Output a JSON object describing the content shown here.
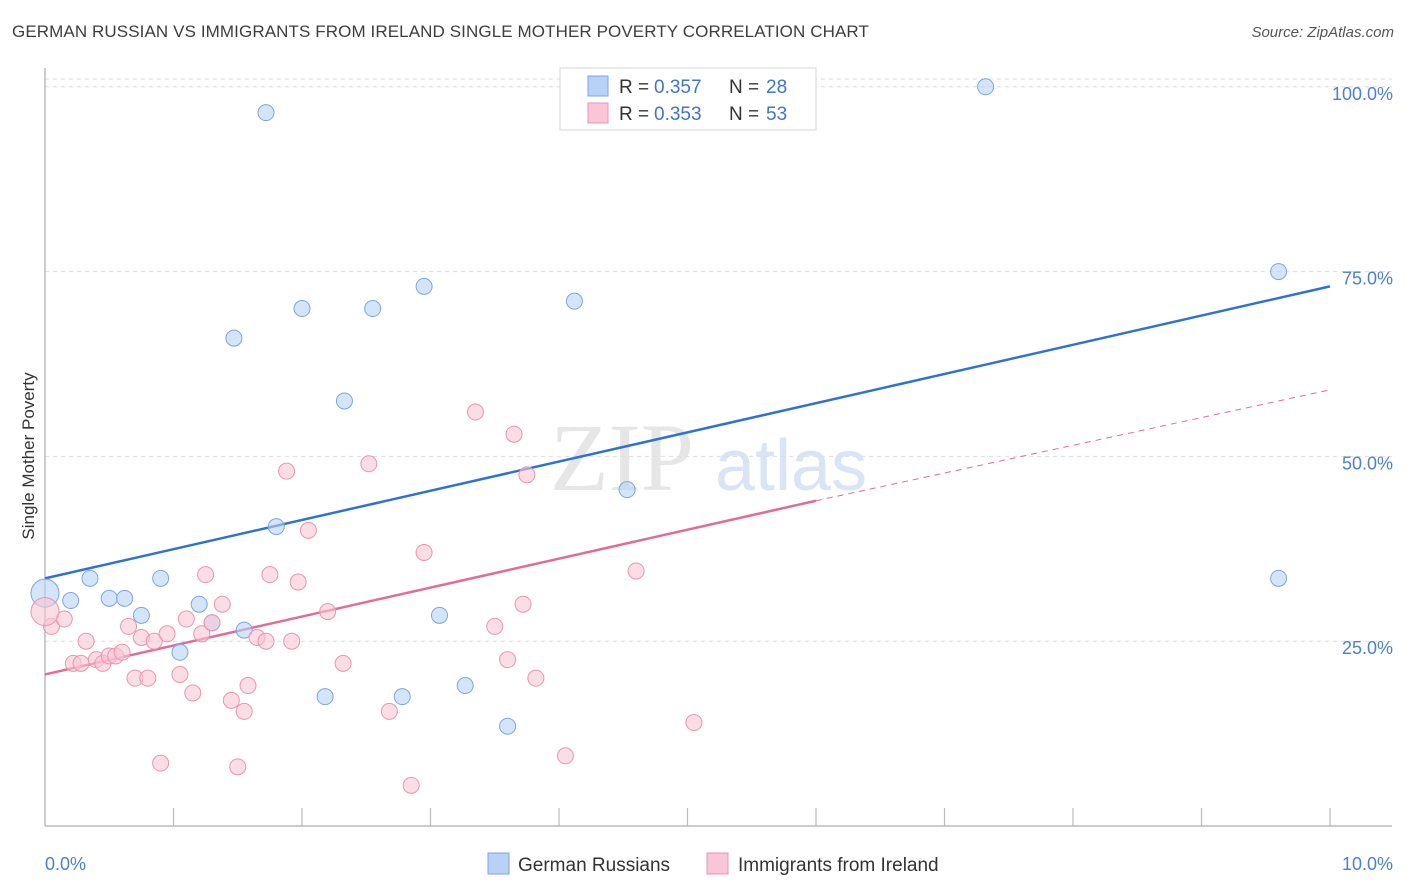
{
  "title": "GERMAN RUSSIAN VS IMMIGRANTS FROM IRELAND SINGLE MOTHER POVERTY CORRELATION CHART",
  "source": "Source: ZipAtlas.com",
  "watermark": {
    "zip": "ZIP",
    "atlas": "atlas"
  },
  "colors": {
    "blue_fill": "#b8d2f5",
    "blue_stroke": "#7aa6e4",
    "blue_line": "#2f72d4",
    "pink_fill": "#f8c6d6",
    "pink_stroke": "#ec94b0",
    "pink_line": "#e36b97",
    "tick_text": "#4a7fd6",
    "grid": "#dddddd"
  },
  "legend": {
    "rows": [
      {
        "r_label": "R = ",
        "r_value": "0.357",
        "n_label": "N = ",
        "n_value": "28"
      },
      {
        "r_label": "R = ",
        "r_value": "0.353",
        "n_label": "N = ",
        "n_value": "53"
      }
    ]
  },
  "chart_data": {
    "type": "scatter",
    "title": "GERMAN RUSSIAN VS IMMIGRANTS FROM IRELAND SINGLE MOTHER POVERTY CORRELATION CHART",
    "xlabel": "",
    "ylabel": "Single Mother Poverty",
    "xlim": [
      0,
      10
    ],
    "ylim": [
      0,
      102
    ],
    "x_tick_labels": [
      "0.0%",
      "10.0%"
    ],
    "y_tick_labels": [
      "25.0%",
      "50.0%",
      "75.0%",
      "100.0%"
    ],
    "y_ticks": [
      25,
      50,
      75,
      100
    ],
    "grid": true,
    "legend_position": "bottom-center",
    "series": [
      {
        "name": "German Russians",
        "color": "#b8d2f5",
        "points": [
          [
            0.0,
            31.5
          ],
          [
            0.2,
            30.5
          ],
          [
            0.35,
            33.5
          ],
          [
            0.5,
            30.8
          ],
          [
            0.62,
            30.8
          ],
          [
            0.75,
            28.5
          ],
          [
            0.9,
            33.5
          ],
          [
            1.05,
            23.5
          ],
          [
            1.2,
            30.0
          ],
          [
            1.3,
            27.5
          ],
          [
            1.47,
            66.0
          ],
          [
            1.55,
            26.5
          ],
          [
            1.72,
            96.5
          ],
          [
            1.8,
            40.5
          ],
          [
            2.0,
            70.0
          ],
          [
            2.18,
            17.5
          ],
          [
            2.33,
            57.5
          ],
          [
            2.55,
            70.0
          ],
          [
            2.78,
            17.5
          ],
          [
            2.95,
            73.0
          ],
          [
            3.07,
            28.5
          ],
          [
            3.27,
            19.0
          ],
          [
            3.6,
            13.5
          ],
          [
            4.12,
            71.0
          ],
          [
            4.53,
            45.5
          ],
          [
            7.32,
            100.0
          ],
          [
            9.6,
            33.5
          ],
          [
            9.6,
            75.0
          ]
        ]
      },
      {
        "name": "Immigrants from Ireland",
        "color": "#f8c6d6",
        "points": [
          [
            0.05,
            27.0
          ],
          [
            0.15,
            28.0
          ],
          [
            0.22,
            22.0
          ],
          [
            0.28,
            22.0
          ],
          [
            0.32,
            25.0
          ],
          [
            0.4,
            22.5
          ],
          [
            0.45,
            22.0
          ],
          [
            0.5,
            23.0
          ],
          [
            0.55,
            23.0
          ],
          [
            0.6,
            23.5
          ],
          [
            0.65,
            27.0
          ],
          [
            0.7,
            20.0
          ],
          [
            0.75,
            25.5
          ],
          [
            0.8,
            20.0
          ],
          [
            0.85,
            25.0
          ],
          [
            0.9,
            8.5
          ],
          [
            0.95,
            26.0
          ],
          [
            1.05,
            20.5
          ],
          [
            1.1,
            28.0
          ],
          [
            1.15,
            18.0
          ],
          [
            1.22,
            26.0
          ],
          [
            1.25,
            34.0
          ],
          [
            1.3,
            27.5
          ],
          [
            1.38,
            30.0
          ],
          [
            1.45,
            17.0
          ],
          [
            1.5,
            8.0
          ],
          [
            1.55,
            15.5
          ],
          [
            1.58,
            19.0
          ],
          [
            1.65,
            25.5
          ],
          [
            1.72,
            25.0
          ],
          [
            1.75,
            34.0
          ],
          [
            1.88,
            48.0
          ],
          [
            1.92,
            25.0
          ],
          [
            1.97,
            33.0
          ],
          [
            2.05,
            40.0
          ],
          [
            2.2,
            29.0
          ],
          [
            2.32,
            22.0
          ],
          [
            2.52,
            49.0
          ],
          [
            2.68,
            15.5
          ],
          [
            2.85,
            5.5
          ],
          [
            2.95,
            37.0
          ],
          [
            3.35,
            56.0
          ],
          [
            3.5,
            27.0
          ],
          [
            3.6,
            22.5
          ],
          [
            3.65,
            53.0
          ],
          [
            3.72,
            30.0
          ],
          [
            3.75,
            47.5
          ],
          [
            3.82,
            20.0
          ],
          [
            4.05,
            9.5
          ],
          [
            4.6,
            34.5
          ],
          [
            5.0,
            100.0
          ],
          [
            5.05,
            14.0
          ],
          [
            0.0,
            29.0
          ]
        ]
      }
    ],
    "trend_lines": [
      {
        "series": "German Russians",
        "x": [
          0,
          10
        ],
        "y": [
          33.5,
          73.0
        ],
        "style": "solid"
      },
      {
        "series": "Immigrants from Ireland",
        "x": [
          0,
          6
        ],
        "y": [
          20.5,
          44.0
        ],
        "style": "solid"
      },
      {
        "series": "Immigrants from Ireland",
        "x": [
          6,
          10
        ],
        "y": [
          44.0,
          59.0
        ],
        "style": "dashed"
      }
    ]
  }
}
